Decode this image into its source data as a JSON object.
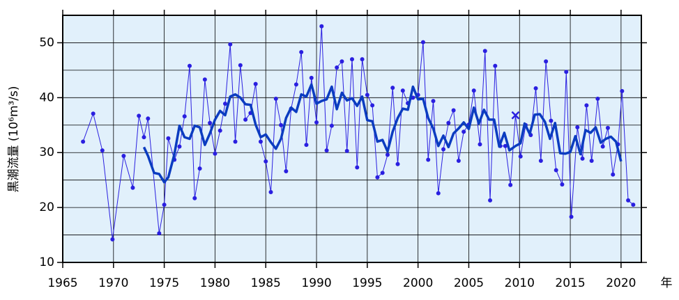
{
  "chart_data": {
    "type": "line",
    "y_label": "黒潮流量 (10⁶m³/s)",
    "x_unit": "年",
    "xlim": [
      1965,
      2022
    ],
    "ylim": [
      10,
      55
    ],
    "xticks": [
      1965,
      1970,
      1975,
      1980,
      1985,
      1990,
      1995,
      2000,
      2005,
      2010,
      2015,
      2020
    ],
    "yticks": [
      10,
      20,
      30,
      40,
      50
    ],
    "grid": true,
    "background": "#e1f0fb",
    "series": [
      {
        "color": "#2a1fe0",
        "line_width": 1,
        "marker_size": 3,
        "x": [
          1967,
          1968,
          1968.9,
          1969.9,
          1971,
          1971.9,
          1972.5,
          1973,
          1973.4,
          1974.5,
          1975,
          1975.4,
          1976,
          1976.5,
          1977,
          1977.5,
          1978,
          1978.5,
          1979,
          1979.5,
          1980,
          1980.5,
          1981,
          1981.5,
          1982,
          1982.5,
          1983,
          1983.5,
          1984,
          1984.5,
          1985,
          1985.5,
          1986,
          1986.5,
          1987,
          1987.5,
          1988,
          1988.5,
          1989,
          1989.5,
          1990,
          1990.5,
          1991,
          1991.5,
          1992,
          1992.5,
          1993,
          1993.5,
          1994,
          1994.5,
          1995,
          1995.5,
          1996,
          1996.5,
          1997,
          1997.5,
          1998,
          1998.5,
          1999,
          1999.5,
          2000,
          2000.5,
          2001,
          2001.5,
          2002,
          2002.5,
          2003,
          2003.5,
          2004,
          2004.5,
          2005,
          2005.5,
          2006.1,
          2006.6,
          2007.1,
          2007.6,
          2008.1,
          2008.6,
          2009.1,
          2009.6,
          2010.1,
          2010.6,
          2011.1,
          2011.6,
          2012.1,
          2012.6,
          2013.1,
          2013.6,
          2014.2,
          2014.6,
          2015.1,
          2015.7,
          2016.2,
          2016.6,
          2017.1,
          2017.7,
          2018.2,
          2018.7,
          2019.2,
          2019.7,
          2020.1,
          2020.7,
          2021.2
        ],
        "values": [
          32.0,
          37.1,
          30.4,
          14.2,
          29.4,
          23.6,
          36.7,
          32.8,
          36.2,
          15.3,
          20.5,
          32.6,
          28.7,
          31.1,
          36.6,
          45.8,
          21.7,
          27.1,
          43.3,
          35.4,
          29.8,
          34.0,
          38.9,
          49.7,
          32.0,
          45.9,
          36.0,
          37.2,
          42.5,
          32.0,
          28.4,
          22.8,
          39.8,
          35.0,
          26.6,
          38.0,
          42.4,
          48.3,
          31.4,
          43.6,
          35.5,
          53.0,
          30.4,
          34.9,
          45.5,
          46.6,
          30.3,
          47.0,
          27.3,
          47.0,
          40.5,
          38.6,
          25.5,
          26.3,
          29.6,
          41.8,
          27.9,
          41.3,
          39.0,
          40.0,
          40.5,
          50.1,
          28.7,
          39.4,
          22.6,
          30.6,
          35.4,
          37.7,
          28.5,
          33.8,
          35.1,
          41.3,
          31.5,
          48.5,
          21.3,
          45.8,
          31.2,
          31.2,
          24.1,
          36.8,
          29.3,
          35.0,
          33.2,
          41.7,
          28.5,
          46.6,
          35.8,
          26.8,
          24.2,
          44.7,
          18.3,
          34.6,
          28.9,
          38.6,
          28.5,
          39.8,
          31.1,
          34.5,
          26.0,
          31.5,
          41.2,
          21.3,
          20.5
        ],
        "markers": [
          "o",
          "o",
          "o",
          "o",
          "o",
          "o",
          "o",
          "o",
          "o",
          "o",
          "o",
          "o",
          "o",
          "o",
          "o",
          "o",
          "o",
          "o",
          "o",
          "o",
          "o",
          "o",
          "o",
          "o",
          "o",
          "o",
          "o",
          "o",
          "o",
          "o",
          "o",
          "o",
          "o",
          "o",
          "o",
          "o",
          "o",
          "o",
          "o",
          "o",
          "o",
          "o",
          "o",
          "o",
          "o",
          "o",
          "o",
          "o",
          "o",
          "o",
          "o",
          "o",
          "o",
          "o",
          "o",
          "o",
          "o",
          "o",
          "o",
          "o",
          "o",
          "o",
          "o",
          "o",
          "o",
          "o",
          "o",
          "o",
          "o",
          "o",
          "o",
          "o",
          "o",
          "o",
          "o",
          "o",
          "o",
          "o",
          "o",
          "x",
          "o",
          "o",
          "o",
          "o",
          "o",
          "o",
          "o",
          "o",
          "o",
          "o",
          "o",
          "o",
          "o",
          "o",
          "o",
          "o",
          "o",
          "o",
          "o",
          "o",
          "o",
          "o",
          "o"
        ]
      },
      {
        "color": "#0b3cc0",
        "line_width": 3.5,
        "x": [
          1973,
          1973.4,
          1974,
          1974.5,
          1975,
          1975.4,
          1976,
          1976.5,
          1977,
          1977.5,
          1978,
          1978.5,
          1979,
          1979.5,
          1980,
          1980.5,
          1981,
          1981.5,
          1982,
          1982.5,
          1983,
          1983.5,
          1984,
          1984.5,
          1985,
          1985.5,
          1986,
          1986.5,
          1987,
          1987.5,
          1988,
          1988.5,
          1989,
          1989.5,
          1990,
          1990.5,
          1991,
          1991.5,
          1992,
          1992.5,
          1993,
          1993.5,
          1994,
          1994.5,
          1995,
          1995.5,
          1996,
          1996.5,
          1997,
          1997.5,
          1998,
          1998.5,
          1999,
          1999.5,
          2000,
          2000.5,
          2001,
          2001.5,
          2002,
          2002.5,
          2003,
          2003.5,
          2004,
          2004.5,
          2005,
          2005.5,
          2006,
          2006.5,
          2007,
          2007.5,
          2008,
          2008.5,
          2009,
          2009.6,
          2010.1,
          2010.5,
          2011,
          2011.5,
          2012,
          2012.5,
          2013,
          2013.5,
          2014,
          2014.5,
          2015,
          2015.5,
          2016,
          2016.5,
          2017,
          2017.5,
          2018,
          2018.5,
          2019,
          2019.5,
          2020
        ],
        "values": [
          31.0,
          29.4,
          26.3,
          26.1,
          24.6,
          25.5,
          29.7,
          34.9,
          32.8,
          32.5,
          34.9,
          34.6,
          31.4,
          33.5,
          36.0,
          37.6,
          36.8,
          40.2,
          40.6,
          40.0,
          38.8,
          38.7,
          35.1,
          32.8,
          33.3,
          31.9,
          30.7,
          32.5,
          36.3,
          38.2,
          37.4,
          40.6,
          40.2,
          42.4,
          38.9,
          39.4,
          39.7,
          42.0,
          37.9,
          40.9,
          39.5,
          39.9,
          38.5,
          40.2,
          35.9,
          35.7,
          32.0,
          32.3,
          30.2,
          33.8,
          36.3,
          38.0,
          37.8,
          42.0,
          39.7,
          39.8,
          36.3,
          34.4,
          31.2,
          33.1,
          31.0,
          33.5,
          34.4,
          35.5,
          34.3,
          38.2,
          35.3,
          37.8,
          36.0,
          36.0,
          31.1,
          33.6,
          30.4,
          31.2,
          31.7,
          35.3,
          33.4,
          36.9,
          37.0,
          35.6,
          32.5,
          35.4,
          29.9,
          29.8,
          30.1,
          33.0,
          29.7,
          34.1,
          33.6,
          34.6,
          31.8,
          32.5,
          32.9,
          32.0,
          28.4
        ]
      }
    ]
  }
}
